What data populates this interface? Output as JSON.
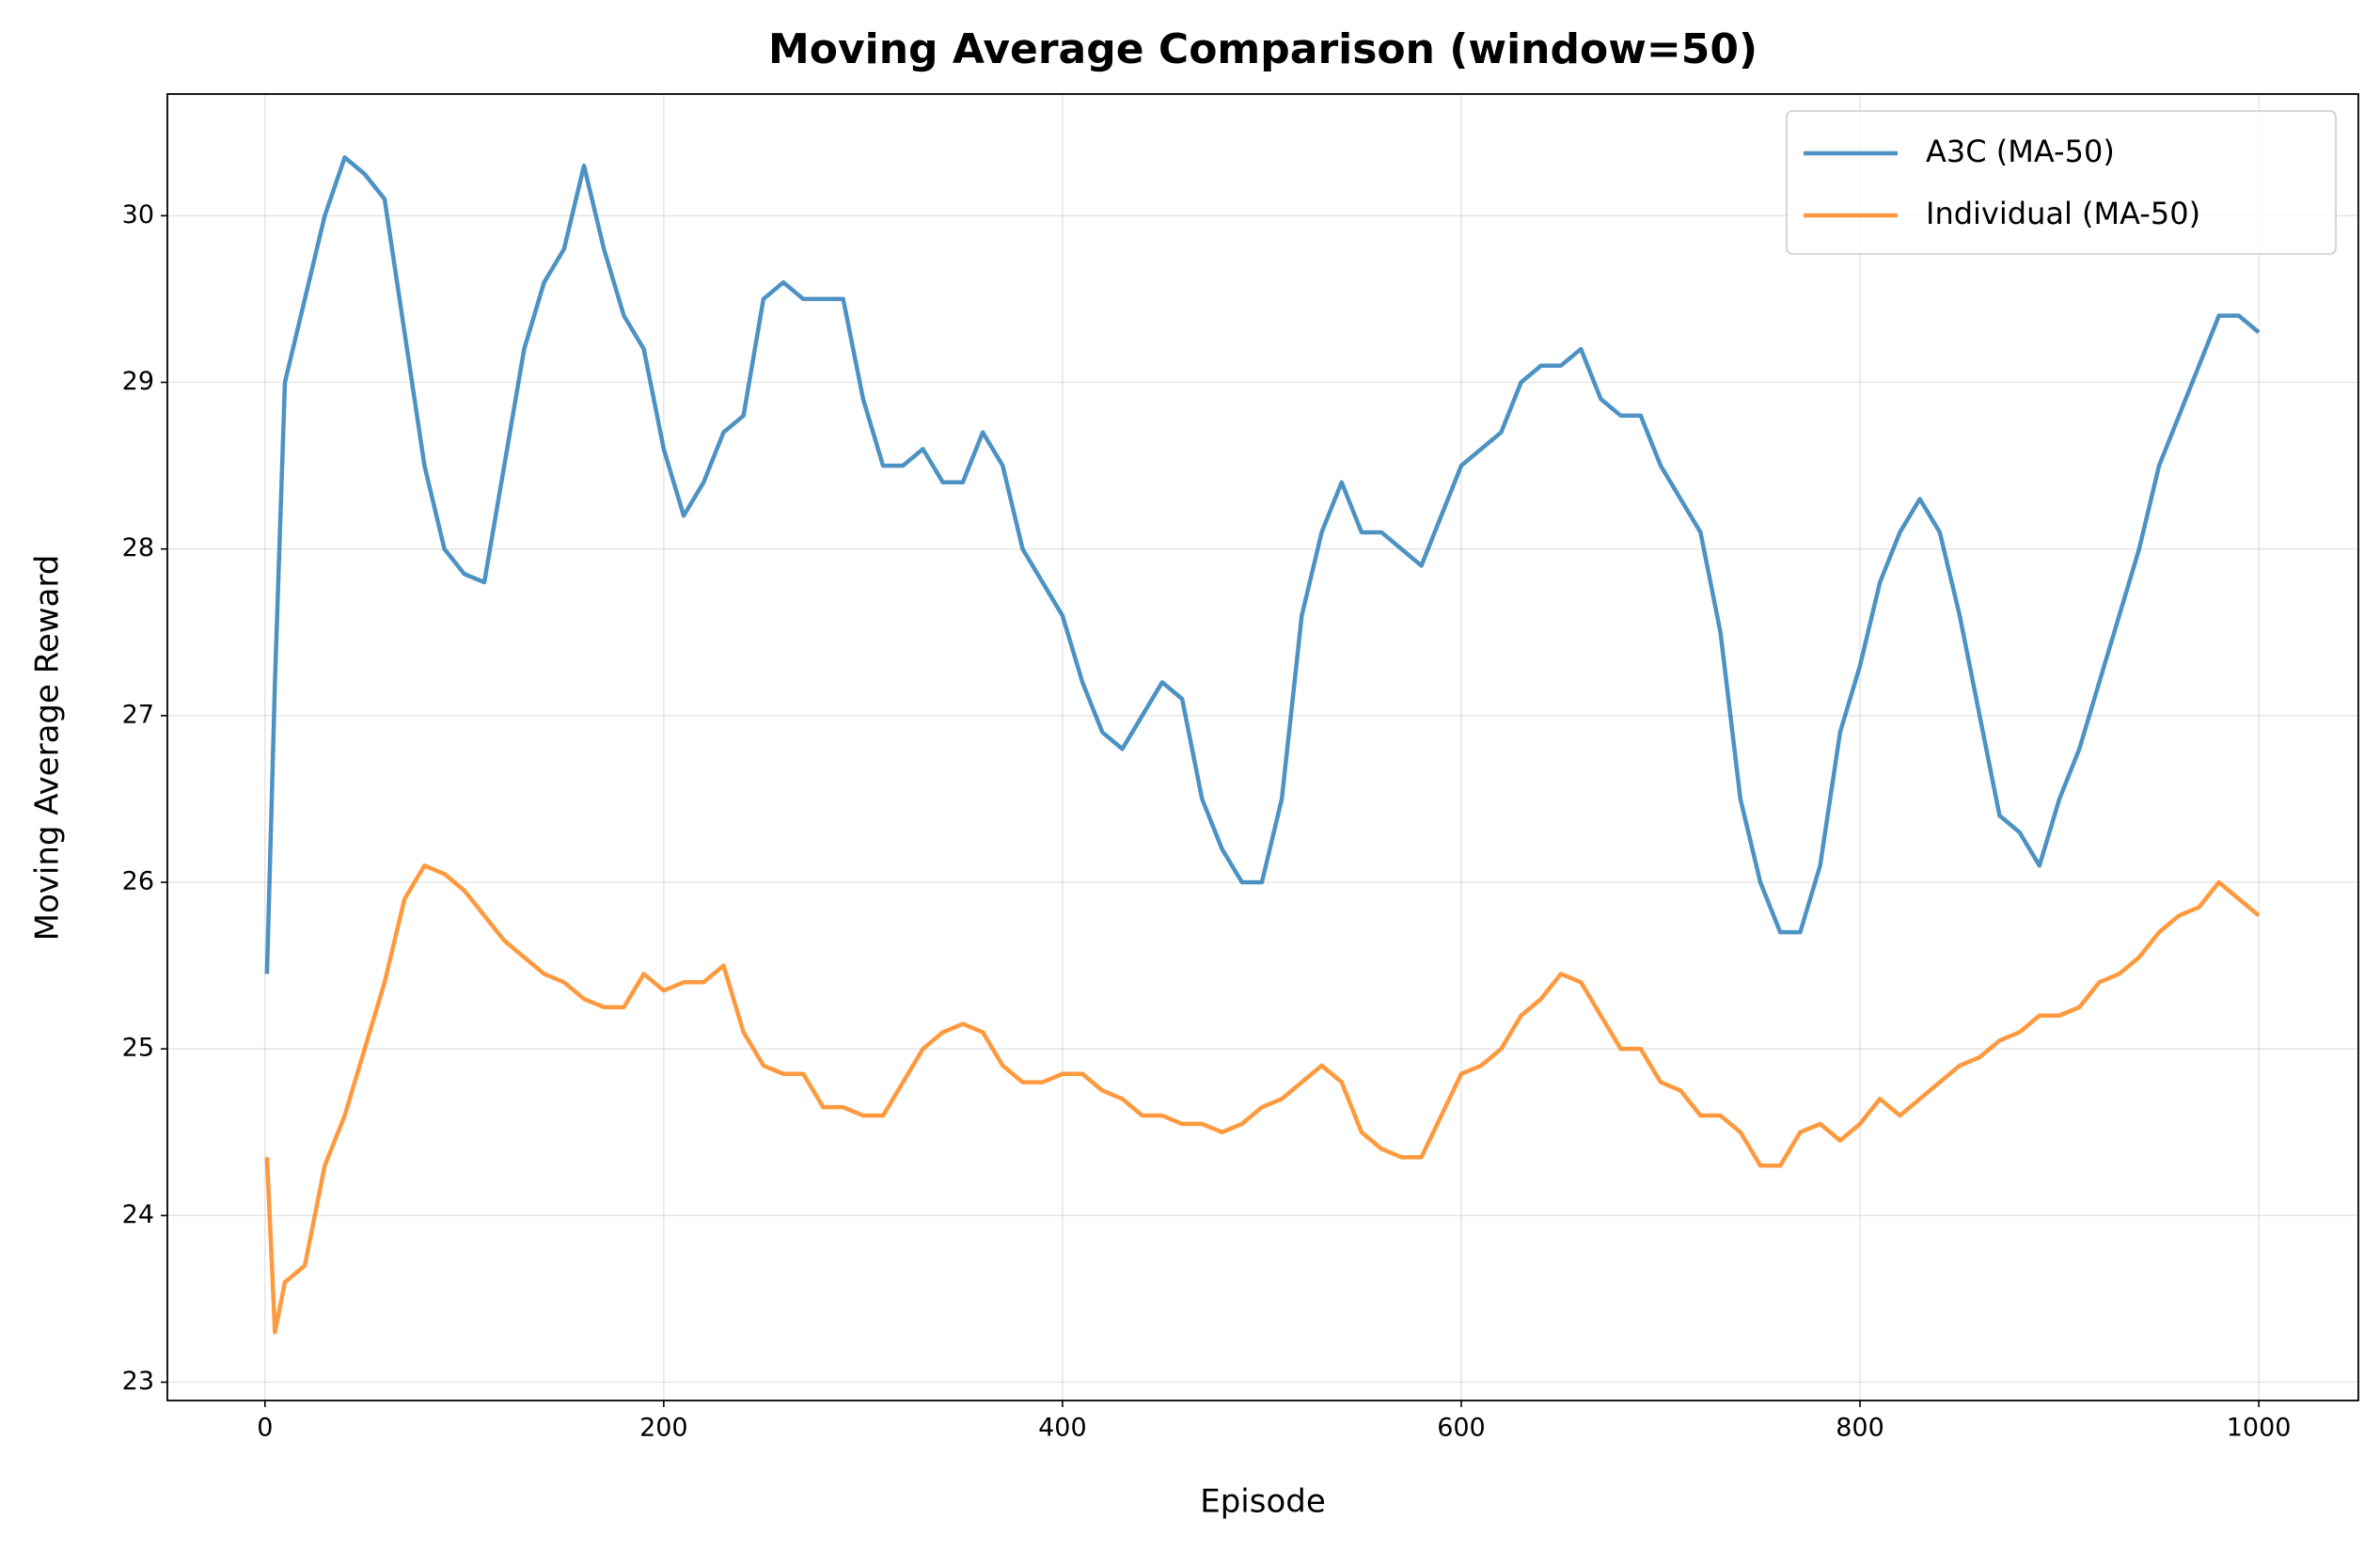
{
  "chart_data": {
    "type": "line",
    "title": "Moving Average Comparison (window=50)",
    "x_label": "Episode",
    "y_label": "Moving Average Reward",
    "x": [
      1,
      5,
      10,
      20,
      30,
      40,
      50,
      60,
      70,
      80,
      90,
      100,
      110,
      120,
      130,
      140,
      150,
      160,
      170,
      180,
      190,
      200,
      210,
      220,
      230,
      240,
      250,
      260,
      270,
      280,
      290,
      300,
      310,
      320,
      330,
      340,
      350,
      360,
      370,
      380,
      390,
      400,
      410,
      420,
      430,
      440,
      450,
      460,
      470,
      480,
      490,
      500,
      510,
      520,
      530,
      540,
      550,
      560,
      570,
      580,
      590,
      600,
      610,
      620,
      630,
      640,
      650,
      660,
      670,
      680,
      690,
      700,
      710,
      720,
      730,
      740,
      750,
      760,
      770,
      780,
      790,
      800,
      810,
      820,
      830,
      840,
      850,
      860,
      870,
      880,
      890,
      900,
      910,
      920,
      930,
      940,
      950,
      960,
      970,
      980,
      990,
      1000
    ],
    "series": [
      {
        "name": "A3C (MA-50)",
        "color": "#1f77b4",
        "values": [
          25.45,
          27.2,
          29.0,
          29.5,
          30.0,
          30.35,
          30.25,
          30.1,
          29.3,
          28.5,
          28.0,
          27.85,
          27.8,
          28.5,
          29.2,
          29.6,
          29.8,
          30.3,
          29.8,
          29.4,
          29.2,
          28.6,
          28.2,
          28.4,
          28.7,
          28.8,
          29.5,
          29.6,
          29.5,
          29.5,
          29.5,
          28.9,
          28.5,
          28.5,
          28.6,
          28.4,
          28.4,
          28.7,
          28.5,
          28.0,
          27.8,
          27.6,
          27.2,
          26.9,
          26.8,
          27.0,
          27.2,
          27.1,
          26.5,
          26.2,
          26.0,
          26.0,
          26.5,
          27.6,
          28.1,
          28.4,
          28.1,
          28.1,
          28.0,
          27.9,
          28.2,
          28.5,
          28.6,
          28.7,
          29.0,
          29.1,
          29.1,
          29.2,
          28.9,
          28.8,
          28.8,
          28.5,
          28.3,
          28.1,
          27.5,
          26.5,
          26.0,
          25.7,
          25.7,
          26.1,
          26.9,
          27.3,
          27.8,
          28.1,
          28.3,
          28.1,
          27.6,
          27.0,
          26.4,
          26.3,
          26.1,
          26.5,
          26.8,
          27.2,
          27.6,
          28.0,
          28.5,
          28.8,
          29.1,
          29.4,
          29.4,
          29.3
        ]
      },
      {
        "name": "Individual (MA-50)",
        "color": "#ff7f0e",
        "values": [
          24.35,
          23.3,
          23.6,
          23.7,
          24.3,
          24.6,
          25.0,
          25.4,
          25.9,
          26.1,
          26.05,
          25.95,
          25.8,
          25.65,
          25.55,
          25.45,
          25.4,
          25.3,
          25.25,
          25.25,
          25.45,
          25.35,
          25.4,
          25.4,
          25.5,
          25.1,
          24.9,
          24.85,
          24.85,
          24.65,
          24.65,
          24.6,
          24.6,
          24.8,
          25.0,
          25.1,
          25.15,
          25.1,
          24.9,
          24.8,
          24.8,
          24.85,
          24.85,
          24.75,
          24.7,
          24.6,
          24.6,
          24.55,
          24.55,
          24.5,
          24.55,
          24.65,
          24.7,
          24.8,
          24.9,
          24.8,
          24.5,
          24.4,
          24.35,
          24.35,
          24.6,
          24.85,
          24.9,
          25.0,
          25.2,
          25.3,
          25.45,
          25.4,
          25.2,
          25.0,
          25.0,
          24.8,
          24.75,
          24.6,
          24.6,
          24.5,
          24.3,
          24.3,
          24.5,
          24.55,
          24.45,
          24.55,
          24.7,
          24.6,
          24.7,
          24.8,
          24.9,
          24.95,
          25.05,
          25.1,
          25.2,
          25.2,
          25.25,
          25.4,
          25.45,
          25.55,
          25.7,
          25.8,
          25.85,
          26.0,
          25.9,
          25.8
        ]
      }
    ],
    "xlim": [
      -48.95,
      1049.95
    ],
    "ylim": [
      22.89,
      30.73
    ],
    "xticks": [
      0,
      200,
      400,
      600,
      800,
      1000
    ],
    "yticks": [
      23,
      24,
      25,
      26,
      27,
      28,
      29,
      30
    ],
    "grid": true,
    "legend": "upper right"
  }
}
